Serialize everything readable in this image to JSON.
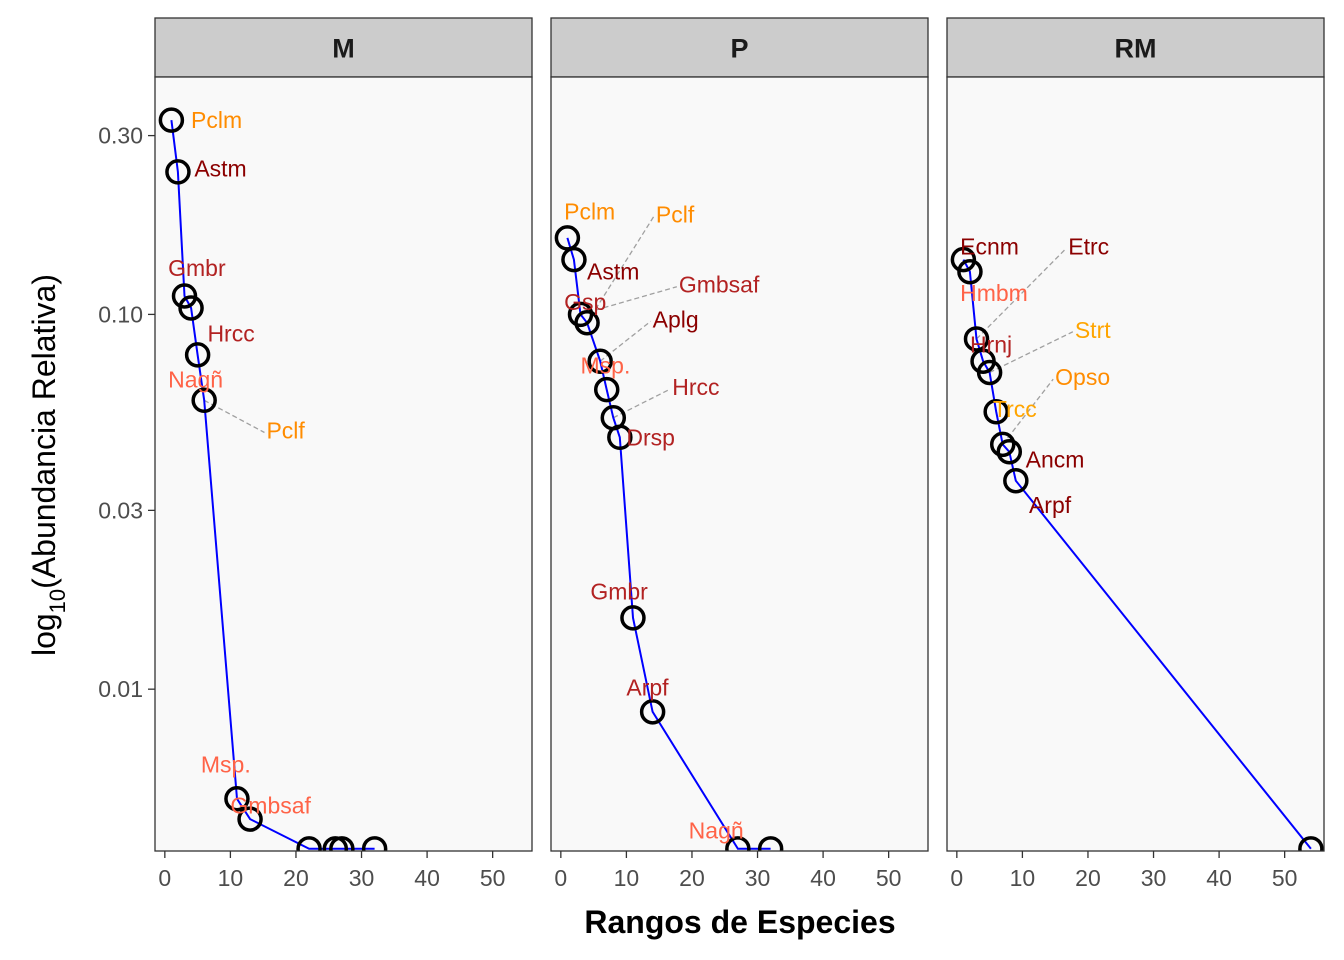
{
  "chart_data": {
    "type": "scatter",
    "xlabel": "Rangos de Especies",
    "ylabel": {
      "main": "log",
      "sub": "10",
      "rest": "(Abundancia Relativa)"
    },
    "x_ticks": [
      0,
      10,
      20,
      30,
      40,
      50
    ],
    "x_tick_labels": [
      "0",
      "10",
      "20",
      "30",
      "40",
      "50"
    ],
    "xlim": [
      -1.5,
      56
    ],
    "y_scale": "log10",
    "y_ticks": [
      0.01,
      0.03,
      0.1,
      0.3
    ],
    "y_tick_labels": [
      "0.01",
      "0.03",
      "0.10",
      "0.30"
    ],
    "ylim": [
      0.0037,
      0.43
    ],
    "grid": false,
    "line_color": "#0000ff",
    "panel_background": "#f9f9f9",
    "strip_background": "#cccccc",
    "label_colors": [
      "#8b0000",
      "#b22222",
      "#ff6347",
      "#ff8c00",
      "#ffa500"
    ],
    "panels": [
      {
        "name": "M",
        "points": [
          {
            "rank": 1,
            "abundance": 0.33
          },
          {
            "rank": 2,
            "abundance": 0.24
          },
          {
            "rank": 3,
            "abundance": 0.112
          },
          {
            "rank": 4,
            "abundance": 0.104
          },
          {
            "rank": 5,
            "abundance": 0.078
          },
          {
            "rank": 6,
            "abundance": 0.059
          },
          {
            "rank": 11,
            "abundance": 0.0051
          },
          {
            "rank": 13,
            "abundance": 0.0045
          },
          {
            "rank": 22,
            "abundance": 0.00375
          },
          {
            "rank": 26,
            "abundance": 0.00375
          },
          {
            "rank": 27,
            "abundance": 0.00375
          },
          {
            "rank": 32,
            "abundance": 0.00375
          }
        ],
        "labels": [
          {
            "text": "Pclm",
            "color": "#ff8c00",
            "rank": 4,
            "abundance": 0.33,
            "anchor": "start",
            "point": 0
          },
          {
            "text": "Astm",
            "color": "#8b0000",
            "rank": 4.5,
            "abundance": 0.245,
            "anchor": "start",
            "point": 1
          },
          {
            "text": "Gmbr",
            "color": "#b22222",
            "rank": 0.5,
            "abundance": 0.133,
            "anchor": "start",
            "point": 2
          },
          {
            "text": "Hrcc",
            "color": "#b22222",
            "rank": 6.5,
            "abundance": 0.089,
            "anchor": "start",
            "point": 3
          },
          {
            "text": "Nagñ",
            "color": "#ff6347",
            "rank": 0.5,
            "abundance": 0.067,
            "anchor": "start",
            "point": 4
          },
          {
            "text": "Pclf",
            "color": "#ff8c00",
            "rank": 15.5,
            "abundance": 0.049,
            "anchor": "start",
            "point": 5,
            "leader": true
          },
          {
            "text": "Msp.",
            "color": "#ff6347",
            "rank": 5.5,
            "abundance": 0.0063,
            "anchor": "start",
            "point": 6
          },
          {
            "text": "Gmbsaf",
            "color": "#ff6347",
            "rank": 10,
            "abundance": 0.0049,
            "anchor": "start",
            "point": 7
          }
        ]
      },
      {
        "name": "P",
        "points": [
          {
            "rank": 1,
            "abundance": 0.16
          },
          {
            "rank": 2,
            "abundance": 0.14
          },
          {
            "rank": 3,
            "abundance": 0.1
          },
          {
            "rank": 4,
            "abundance": 0.095
          },
          {
            "rank": 6,
            "abundance": 0.075
          },
          {
            "rank": 7,
            "abundance": 0.063
          },
          {
            "rank": 8,
            "abundance": 0.053
          },
          {
            "rank": 9,
            "abundance": 0.047
          },
          {
            "rank": 11,
            "abundance": 0.0155
          },
          {
            "rank": 14,
            "abundance": 0.0087
          },
          {
            "rank": 27,
            "abundance": 0.00375
          },
          {
            "rank": 32,
            "abundance": 0.00375
          }
        ],
        "labels": [
          {
            "text": "Pclm",
            "color": "#ff8c00",
            "rank": 0.5,
            "abundance": 0.188,
            "anchor": "start",
            "point": 0
          },
          {
            "text": "Pclf",
            "color": "#ff8c00",
            "rank": 14.5,
            "abundance": 0.185,
            "anchor": "start",
            "point": 3,
            "leader": true
          },
          {
            "text": "Astm",
            "color": "#8b0000",
            "rank": 4,
            "abundance": 0.13,
            "anchor": "start",
            "point": 1
          },
          {
            "text": "Gmbsaf",
            "color": "#b22222",
            "rank": 18,
            "abundance": 0.12,
            "anchor": "start",
            "point": 2,
            "leader": true
          },
          {
            "text": "Gsp",
            "color": "#b22222",
            "rank": 0.5,
            "abundance": 0.108,
            "anchor": "start",
            "point": 3
          },
          {
            "text": "Aplg",
            "color": "#8b0000",
            "rank": 14,
            "abundance": 0.097,
            "anchor": "start",
            "point": 4,
            "leader": true
          },
          {
            "text": "Msp.",
            "color": "#ff6347",
            "rank": 3,
            "abundance": 0.073,
            "anchor": "start",
            "point": 4
          },
          {
            "text": "Hrcc",
            "color": "#b22222",
            "rank": 17,
            "abundance": 0.064,
            "anchor": "start",
            "point": 6,
            "leader": true
          },
          {
            "text": "Drsp",
            "color": "#b22222",
            "rank": 10,
            "abundance": 0.047,
            "anchor": "start",
            "point": 7
          },
          {
            "text": "Gmbr",
            "color": "#b22222",
            "rank": 4.5,
            "abundance": 0.0182,
            "anchor": "start",
            "point": 8
          },
          {
            "text": "Arpf",
            "color": "#b22222",
            "rank": 10,
            "abundance": 0.0101,
            "anchor": "start",
            "point": 9
          },
          {
            "text": "Nagñ",
            "color": "#ff6347",
            "rank": 19.5,
            "abundance": 0.0042,
            "anchor": "start",
            "point": 10
          }
        ]
      },
      {
        "name": "RM",
        "points": [
          {
            "rank": 1,
            "abundance": 0.14
          },
          {
            "rank": 2,
            "abundance": 0.13
          },
          {
            "rank": 3,
            "abundance": 0.086
          },
          {
            "rank": 4,
            "abundance": 0.075
          },
          {
            "rank": 5,
            "abundance": 0.07
          },
          {
            "rank": 6,
            "abundance": 0.055
          },
          {
            "rank": 7,
            "abundance": 0.045
          },
          {
            "rank": 8,
            "abundance": 0.043
          },
          {
            "rank": 9,
            "abundance": 0.036
          },
          {
            "rank": 54,
            "abundance": 0.00375
          }
        ],
        "labels": [
          {
            "text": "Ecnm",
            "color": "#8b0000",
            "rank": 0.5,
            "abundance": 0.152,
            "anchor": "start",
            "point": 0
          },
          {
            "text": "Etrc",
            "color": "#8b0000",
            "rank": 17,
            "abundance": 0.152,
            "anchor": "start",
            "point": 2,
            "leader": true
          },
          {
            "text": "Hmbm",
            "color": "#ff6347",
            "rank": 0.5,
            "abundance": 0.114,
            "anchor": "start",
            "point": 1
          },
          {
            "text": "Strt",
            "color": "#ffa500",
            "rank": 18,
            "abundance": 0.091,
            "anchor": "start",
            "point": 4,
            "leader": true
          },
          {
            "text": "Hrnj",
            "color": "#b22222",
            "rank": 2,
            "abundance": 0.083,
            "anchor": "start",
            "point": 2
          },
          {
            "text": "Opso",
            "color": "#ff8c00",
            "rank": 15,
            "abundance": 0.068,
            "anchor": "start",
            "point": 6,
            "leader": true
          },
          {
            "text": "Trcc",
            "color": "#ffa500",
            "rank": 5.5,
            "abundance": 0.056,
            "anchor": "start",
            "point": 5
          },
          {
            "text": "Ancm",
            "color": "#8b0000",
            "rank": 10.5,
            "abundance": 0.041,
            "anchor": "start",
            "point": 7
          },
          {
            "text": "Arpf",
            "color": "#8b0000",
            "rank": 11,
            "abundance": 0.031,
            "anchor": "start",
            "point": 8
          }
        ]
      }
    ]
  }
}
